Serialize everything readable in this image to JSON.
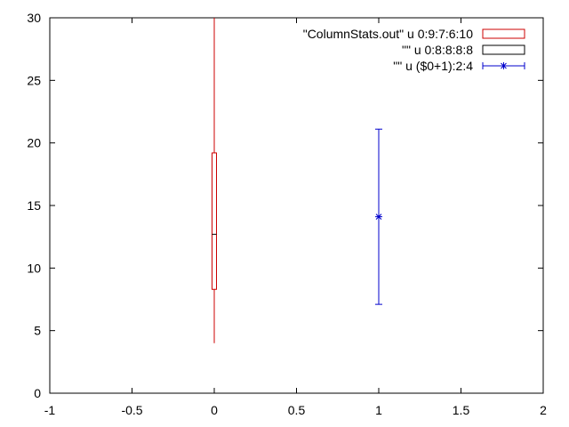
{
  "chart_data": {
    "type": "candlestick",
    "xlim": [
      -1,
      2
    ],
    "ylim": [
      0,
      30
    ],
    "x_ticks": [
      "-1",
      "-0.5",
      "0",
      "0.5",
      "1",
      "1.5",
      "2"
    ],
    "x_tick_values": [
      -1,
      -0.5,
      0,
      0.5,
      1,
      1.5,
      2
    ],
    "y_ticks": [
      "0",
      "5",
      "10",
      "15",
      "20",
      "25",
      "30"
    ],
    "y_tick_values": [
      0,
      5,
      10,
      15,
      20,
      25,
      30
    ],
    "grid": false,
    "legend_position": "top-right",
    "series": [
      {
        "name": "\"ColumnStats.out\" u 0:9:7:6:10",
        "type": "candlestick",
        "color": "#cc0000",
        "x": 0,
        "open": 8.3,
        "low": 4.0,
        "high": 30.0,
        "close": 19.2
      },
      {
        "name": "\"\" u 0:8:8:8:8",
        "type": "candlestick-median",
        "color": "#000000",
        "x": 0,
        "value": 12.7
      },
      {
        "name": "\"\" u ($0+1):2:4",
        "type": "errorbar",
        "color": "#0000cc",
        "x": 1,
        "y": 14.1,
        "err": 7.0
      }
    ]
  }
}
